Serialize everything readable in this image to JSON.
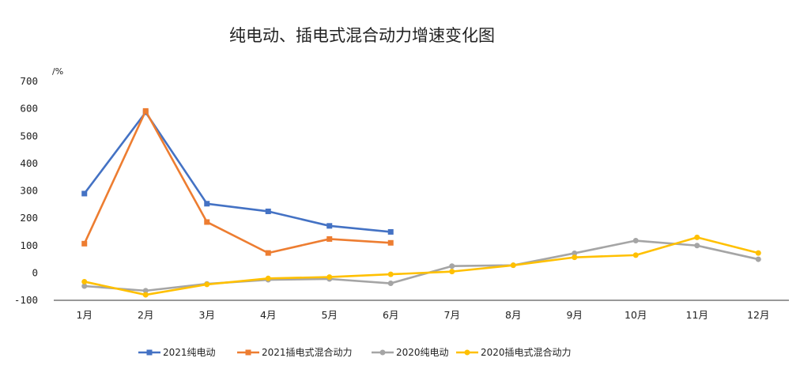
{
  "chart_data": {
    "type": "line",
    "title": "纯电动、插电式混合动力增速变化图",
    "ylabel": "/%",
    "xlabel": "",
    "categories": [
      "1月",
      "2月",
      "3月",
      "4月",
      "5月",
      "6月",
      "7月",
      "8月",
      "9月",
      "10月",
      "11月",
      "12月"
    ],
    "y_ticks": [
      "-100",
      "0",
      "100",
      "200",
      "300",
      "400",
      "500",
      "600",
      "700"
    ],
    "ylim": [
      -100,
      700
    ],
    "grid": false,
    "legend_position": "bottom",
    "series": [
      {
        "name": "2021纯电动",
        "color": "#4472C4",
        "marker": "square",
        "values": [
          290,
          587,
          253,
          225,
          172,
          150,
          null,
          null,
          null,
          null,
          null,
          null
        ]
      },
      {
        "name": "2021插电式混合动力",
        "color": "#ED7D31",
        "marker": "square",
        "values": [
          107,
          592,
          186,
          73,
          124,
          110,
          null,
          null,
          null,
          null,
          null,
          null
        ]
      },
      {
        "name": "2020纯电动",
        "color": "#A5A5A5",
        "marker": "circle",
        "values": [
          -48,
          -65,
          -40,
          -25,
          -22,
          -38,
          25,
          28,
          72,
          118,
          100,
          50
        ]
      },
      {
        "name": "2020插电式混合动力",
        "color": "#FFC000",
        "marker": "circle",
        "values": [
          -32,
          -80,
          -42,
          -20,
          -15,
          -5,
          5,
          28,
          57,
          65,
          130,
          73
        ]
      }
    ]
  }
}
